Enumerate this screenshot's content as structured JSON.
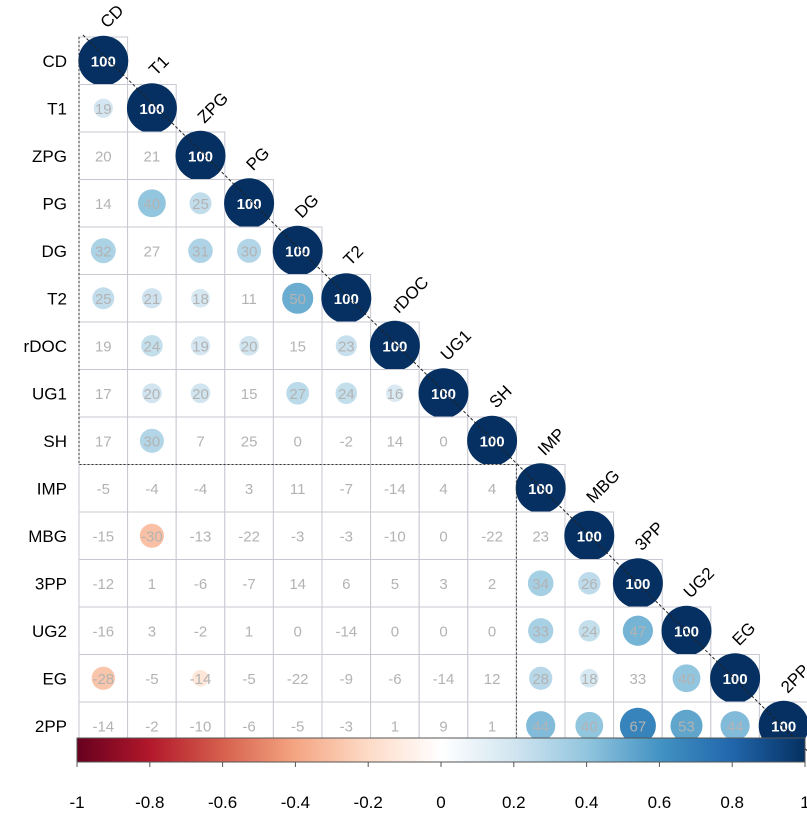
{
  "chart_data": {
    "type": "heatmap",
    "subtype": "correlation-matrix-lower-triangle",
    "variables": [
      "CD",
      "T1",
      "ZPG",
      "PG",
      "DG",
      "T2",
      "rDOC",
      "UG1",
      "SH",
      "IMP",
      "MBG",
      "3PP",
      "UG2",
      "EG",
      "2PP"
    ],
    "values": [
      [
        100
      ],
      [
        19,
        100
      ],
      [
        20,
        21,
        100
      ],
      [
        14,
        40,
        25,
        100
      ],
      [
        32,
        27,
        31,
        30,
        100
      ],
      [
        25,
        21,
        18,
        11,
        50,
        100
      ],
      [
        19,
        24,
        19,
        20,
        15,
        23,
        100
      ],
      [
        17,
        20,
        20,
        15,
        27,
        24,
        16,
        100
      ],
      [
        17,
        30,
        7,
        25,
        0,
        -2,
        14,
        0,
        100
      ],
      [
        -5,
        -4,
        -4,
        3,
        11,
        -7,
        -14,
        4,
        4,
        100
      ],
      [
        -15,
        -30,
        -13,
        -22,
        -3,
        -3,
        -10,
        0,
        -22,
        23,
        100
      ],
      [
        -12,
        1,
        -6,
        -7,
        14,
        6,
        5,
        3,
        2,
        34,
        26,
        100
      ],
      [
        -16,
        3,
        -2,
        1,
        0,
        -14,
        0,
        0,
        0,
        33,
        24,
        47,
        100
      ],
      [
        -28,
        -5,
        -14,
        -5,
        -22,
        -9,
        -6,
        -14,
        12,
        28,
        18,
        33,
        40,
        100
      ],
      [
        -14,
        -2,
        -10,
        -6,
        -5,
        -3,
        1,
        9,
        1,
        44,
        40,
        67,
        53,
        44,
        100
      ]
    ],
    "cell_shown_as_circle": [
      [
        true
      ],
      [
        true,
        true
      ],
      [
        false,
        false,
        true
      ],
      [
        false,
        true,
        true,
        true
      ],
      [
        true,
        false,
        true,
        true,
        true
      ],
      [
        true,
        true,
        true,
        false,
        true,
        true
      ],
      [
        false,
        true,
        true,
        true,
        false,
        true,
        true
      ],
      [
        false,
        true,
        true,
        false,
        true,
        true,
        true,
        true
      ],
      [
        false,
        true,
        false,
        false,
        false,
        false,
        false,
        false,
        true
      ],
      [
        false,
        false,
        false,
        false,
        false,
        false,
        false,
        false,
        false,
        true
      ],
      [
        false,
        true,
        false,
        false,
        false,
        false,
        false,
        false,
        false,
        false,
        true
      ],
      [
        false,
        false,
        false,
        false,
        false,
        false,
        false,
        false,
        false,
        true,
        true,
        true
      ],
      [
        false,
        false,
        false,
        false,
        false,
        false,
        false,
        false,
        false,
        true,
        true,
        true,
        true
      ],
      [
        true,
        false,
        true,
        false,
        false,
        false,
        false,
        false,
        false,
        true,
        true,
        false,
        true,
        true
      ],
      [
        false,
        false,
        false,
        false,
        false,
        false,
        false,
        false,
        false,
        true,
        true,
        true,
        true,
        true,
        true
      ]
    ],
    "clusters": [
      [
        0,
        8
      ],
      [
        9,
        14
      ]
    ],
    "colorbar": {
      "ticks": [
        "-1",
        "-0.8",
        "-0.6",
        "-0.4",
        "-0.2",
        "0",
        "0.2",
        "0.4",
        "0.6",
        "0.8",
        "1"
      ],
      "range": [
        -1,
        1
      ],
      "colors": [
        "#67001f",
        "#b2182b",
        "#d6604d",
        "#f4a582",
        "#fddbc7",
        "#ffffff",
        "#d1e5f0",
        "#92c5de",
        "#4393c3",
        "#2166ac",
        "#053061"
      ]
    },
    "diagonal_line": "dashed"
  }
}
